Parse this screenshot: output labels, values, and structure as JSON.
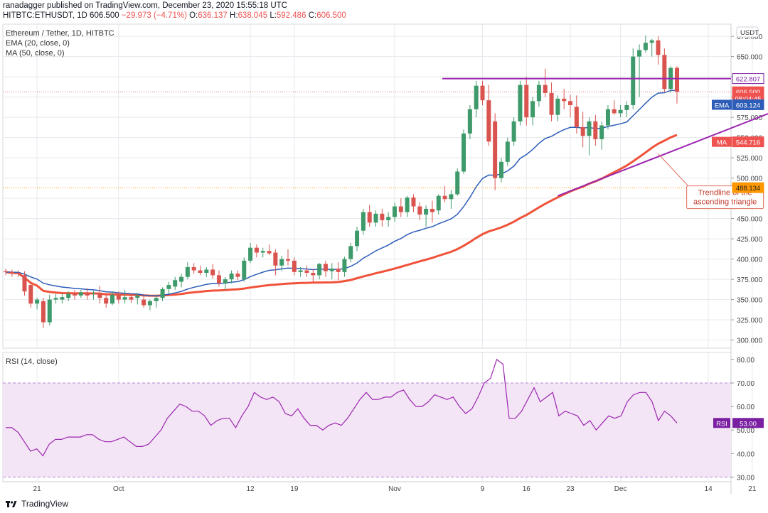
{
  "header": {
    "publisher": "ranadagger published on TradingView.com, December 23, 2020 15:55:18 UTC",
    "symbol": "HITBTC:ETHUSDT, 1D",
    "last": "606.500",
    "change": "−29.973 (−4.71%)",
    "open_label": "O:",
    "open": "636.137",
    "high_label": "H:",
    "high": "638.045",
    "low_label": "L:",
    "low": "592.486",
    "close_label": "C:",
    "close": "606.500"
  },
  "legend": {
    "title": "Ethereum / Tether, 1D, HITBTC",
    "ema": "EMA (20, close, 0)",
    "ma": "MA (50, close, 0)",
    "rsi": "RSI (14, close)"
  },
  "footer": {
    "brand": "TradingView"
  },
  "colors": {
    "up": "#3e9a6a",
    "down": "#d9534f",
    "ema": "#2962ff",
    "ma": "#f0523a",
    "line": "#9c27b0",
    "rsi": "#9c27b0",
    "rsi_band": "#f3e5f5",
    "grid": "#e6e9ee"
  },
  "chart_data": [
    {
      "type": "candlestick",
      "currency_label": "USDT",
      "ylim": [
        290,
        690
      ],
      "yticks": [
        300,
        325,
        350,
        375,
        400,
        425,
        450,
        475,
        500,
        525,
        550,
        575,
        600,
        625,
        650,
        675
      ],
      "xtick_labels": [
        "21",
        "Oct",
        "12",
        "19",
        "Nov",
        "9",
        "16",
        "23",
        "Dec",
        "14",
        "21"
      ],
      "xtick_index": [
        5,
        18,
        39,
        46,
        62,
        76,
        83,
        90,
        98,
        112,
        119
      ],
      "candles": [
        [
          385,
          388,
          380,
          384
        ],
        [
          384,
          387,
          378,
          382
        ],
        [
          383,
          386,
          378,
          382
        ],
        [
          380,
          385,
          355,
          360
        ],
        [
          368,
          370,
          340,
          345
        ],
        [
          345,
          352,
          338,
          350
        ],
        [
          348,
          352,
          315,
          322
        ],
        [
          322,
          356,
          318,
          350
        ],
        [
          350,
          357,
          345,
          352
        ],
        [
          350,
          358,
          345,
          353
        ],
        [
          352,
          360,
          348,
          357
        ],
        [
          357,
          362,
          350,
          355
        ],
        [
          355,
          362,
          352,
          359
        ],
        [
          359,
          364,
          350,
          355
        ],
        [
          357,
          361,
          350,
          358
        ],
        [
          358,
          367,
          345,
          352
        ],
        [
          352,
          356,
          340,
          345
        ],
        [
          345,
          360,
          343,
          356
        ],
        [
          356,
          360,
          345,
          350
        ],
        [
          350,
          362,
          345,
          353
        ],
        [
          353,
          358,
          346,
          350
        ],
        [
          352,
          358,
          344,
          355
        ],
        [
          350,
          355,
          340,
          343
        ],
        [
          343,
          350,
          337,
          348
        ],
        [
          348,
          356,
          340,
          352
        ],
        [
          352,
          365,
          348,
          363
        ],
        [
          363,
          372,
          357,
          368
        ],
        [
          366,
          378,
          362,
          374
        ],
        [
          372,
          382,
          365,
          378
        ],
        [
          378,
          396,
          375,
          390
        ],
        [
          390,
          395,
          382,
          386
        ],
        [
          386,
          392,
          380,
          383
        ],
        [
          383,
          390,
          378,
          387
        ],
        [
          387,
          394,
          376,
          380
        ],
        [
          380,
          386,
          366,
          370
        ],
        [
          370,
          378,
          362,
          375
        ],
        [
          375,
          386,
          370,
          382
        ],
        [
          382,
          386,
          374,
          378
        ],
        [
          375,
          402,
          372,
          398
        ],
        [
          398,
          420,
          395,
          414
        ],
        [
          414,
          418,
          402,
          408
        ],
        [
          408,
          414,
          402,
          410
        ],
        [
          410,
          418,
          405,
          407
        ],
        [
          408,
          412,
          380,
          392
        ],
        [
          392,
          404,
          385,
          400
        ],
        [
          400,
          412,
          392,
          398
        ],
        [
          398,
          402,
          380,
          384
        ],
        [
          384,
          390,
          378,
          386
        ],
        [
          386,
          392,
          378,
          383
        ],
        [
          383,
          388,
          372,
          380
        ],
        [
          380,
          395,
          375,
          394
        ],
        [
          394,
          398,
          378,
          385
        ],
        [
          385,
          395,
          375,
          388
        ],
        [
          388,
          396,
          374,
          384
        ],
        [
          384,
          403,
          378,
          400
        ],
        [
          400,
          420,
          396,
          416
        ],
        [
          416,
          440,
          410,
          435
        ],
        [
          435,
          462,
          430,
          458
        ],
        [
          458,
          467,
          440,
          445
        ],
        [
          445,
          460,
          440,
          456
        ],
        [
          456,
          462,
          440,
          448
        ],
        [
          448,
          458,
          440,
          452
        ],
        [
          452,
          470,
          446,
          465
        ],
        [
          465,
          475,
          452,
          458
        ],
        [
          458,
          478,
          452,
          476
        ],
        [
          476,
          480,
          458,
          465
        ],
        [
          465,
          470,
          448,
          455
        ],
        [
          455,
          466,
          440,
          462
        ],
        [
          462,
          472,
          445,
          458
        ],
        [
          460,
          480,
          455,
          478
        ],
        [
          478,
          490,
          470,
          474
        ],
        [
          474,
          485,
          462,
          480
        ],
        [
          480,
          512,
          478,
          508
        ],
        [
          508,
          560,
          505,
          555
        ],
        [
          555,
          590,
          548,
          585
        ],
        [
          585,
          620,
          575,
          614
        ],
        [
          614,
          620,
          590,
          596
        ],
        [
          596,
          615,
          540,
          545
        ],
        [
          570,
          580,
          485,
          500
        ],
        [
          500,
          525,
          495,
          520
        ],
        [
          520,
          550,
          515,
          545
        ],
        [
          545,
          575,
          540,
          570
        ],
        [
          570,
          620,
          565,
          615
        ],
        [
          615,
          625,
          565,
          575
        ],
        [
          575,
          600,
          565,
          595
        ],
        [
          595,
          620,
          588,
          615
        ],
        [
          615,
          635,
          600,
          605
        ],
        [
          605,
          618,
          570,
          578
        ],
        [
          578,
          602,
          570,
          598
        ],
        [
          598,
          610,
          585,
          595
        ],
        [
          595,
          603,
          575,
          590
        ],
        [
          588,
          602,
          555,
          563
        ],
        [
          563,
          582,
          538,
          552
        ],
        [
          552,
          575,
          528,
          570
        ],
        [
          570,
          578,
          540,
          548
        ],
        [
          548,
          570,
          535,
          565
        ],
        [
          565,
          590,
          560,
          585
        ],
        [
          585,
          596,
          578,
          580
        ],
        [
          580,
          590,
          575,
          584
        ],
        [
          584,
          595,
          575,
          590
        ],
        [
          590,
          660,
          585,
          650
        ],
        [
          650,
          665,
          600,
          658
        ],
        [
          658,
          676,
          655,
          667
        ],
        [
          667,
          672,
          650,
          670
        ],
        [
          670,
          675,
          640,
          652
        ],
        [
          652,
          660,
          606,
          610
        ],
        [
          610,
          638,
          605,
          636
        ],
        [
          636,
          638,
          592,
          606.5
        ]
      ],
      "ema20_last": 603.124,
      "ma50_last": 544.716,
      "price_labels": [
        {
          "label": "622.807",
          "value": 622.807,
          "kind": "resistance"
        },
        {
          "label": "606.500",
          "value": 606.5,
          "kind": "last"
        },
        {
          "label": "08:04:45",
          "value": 598.5,
          "kind": "countdown"
        },
        {
          "label": "603.124",
          "value": 590.5,
          "kind": "ema",
          "tag": "EMA"
        },
        {
          "label": "544.716",
          "value": 544.716,
          "kind": "ma",
          "tag": "MA"
        },
        {
          "label": "488.134",
          "value": 488.134,
          "kind": "support"
        }
      ],
      "resistance_level": 622.807,
      "support_level": 488.134,
      "trendline": {
        "from": [
          88,
          478
        ],
        "to": [
          124,
          587
        ]
      },
      "annotation": {
        "lines": [
          "Trendline of the",
          "ascending triangle"
        ],
        "points_to": [
          104,
          530
        ],
        "text_at": [
          109,
          478
        ]
      }
    },
    {
      "type": "line",
      "title": "RSI (14, close)",
      "ylim": [
        28,
        83
      ],
      "yticks": [
        30,
        40,
        50,
        60,
        70,
        80
      ],
      "band": [
        30,
        70
      ],
      "last_label": "53.00",
      "last_tag": "RSI",
      "values": [
        51,
        51,
        49,
        45,
        41,
        42,
        39,
        44,
        46,
        46,
        47,
        47,
        47,
        48,
        48,
        46,
        45,
        45,
        46,
        47,
        45,
        43,
        43,
        44,
        47,
        50,
        55,
        58,
        61,
        60,
        58,
        58,
        56,
        52,
        54,
        55,
        55,
        51,
        56,
        60,
        66,
        64,
        63,
        64,
        62,
        57,
        56,
        59,
        55,
        52,
        52,
        50,
        52,
        53,
        52,
        55,
        59,
        63,
        66,
        63,
        63,
        64,
        64,
        66,
        67,
        63,
        60,
        60,
        62,
        65,
        64,
        63,
        64,
        60,
        57,
        59,
        64,
        70,
        72,
        80,
        78,
        55,
        55,
        58,
        63,
        68,
        62,
        64,
        66,
        56,
        58,
        57,
        56,
        52,
        54,
        50,
        53,
        56,
        55,
        56,
        62,
        65,
        66,
        66,
        62,
        54,
        58,
        56,
        53
      ]
    }
  ]
}
